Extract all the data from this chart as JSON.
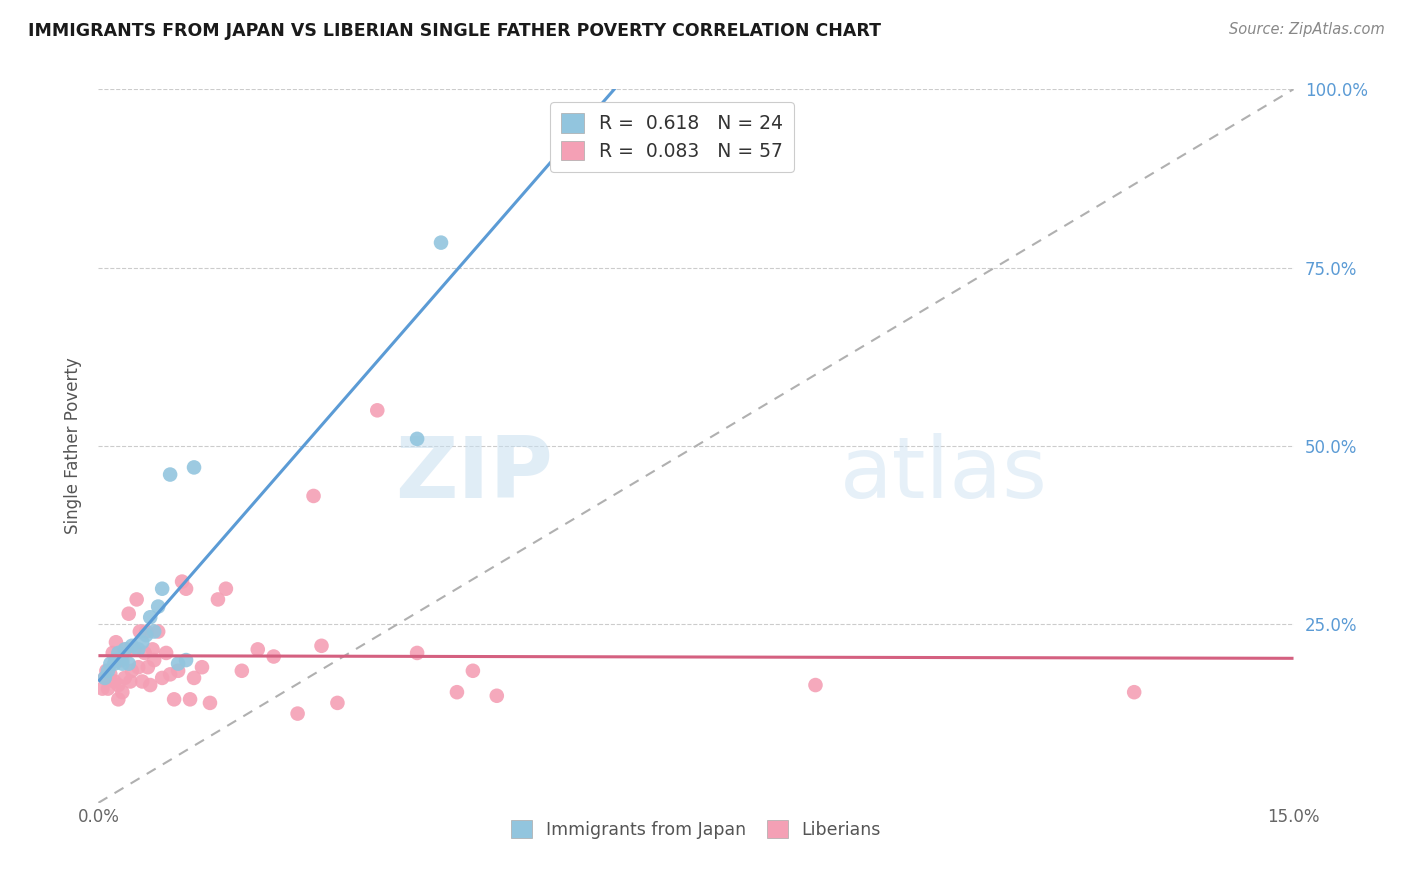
{
  "title": "IMMIGRANTS FROM JAPAN VS LIBERIAN SINGLE FATHER POVERTY CORRELATION CHART",
  "source": "Source: ZipAtlas.com",
  "ylabel": "Single Father Poverty",
  "legend_label1": "Immigrants from Japan",
  "legend_label2": "Liberians",
  "R1": 0.618,
  "N1": 24,
  "R2": 0.083,
  "N2": 57,
  "xlim": [
    0.0,
    0.15
  ],
  "ylim": [
    0.0,
    1.0
  ],
  "color_blue": "#92c5de",
  "color_pink": "#f4a0b5",
  "color_line_blue": "#5b9bd5",
  "color_line_pink": "#d46080",
  "color_diag": "#b0b0b0",
  "watermark_zip": "ZIP",
  "watermark_atlas": "atlas",
  "japan_x": [
    0.0008,
    0.0012,
    0.0015,
    0.002,
    0.0022,
    0.0025,
    0.003,
    0.0033,
    0.0038,
    0.0042,
    0.005,
    0.0055,
    0.006,
    0.0065,
    0.007,
    0.0075,
    0.008,
    0.009,
    0.01,
    0.011,
    0.012,
    0.04,
    0.043,
    0.058
  ],
  "japan_y": [
    0.175,
    0.185,
    0.195,
    0.195,
    0.2,
    0.21,
    0.195,
    0.215,
    0.195,
    0.22,
    0.215,
    0.225,
    0.235,
    0.26,
    0.24,
    0.275,
    0.3,
    0.46,
    0.195,
    0.2,
    0.47,
    0.51,
    0.785,
    0.97
  ],
  "liberia_x": [
    0.0005,
    0.0008,
    0.001,
    0.0012,
    0.0015,
    0.0018,
    0.002,
    0.0022,
    0.0025,
    0.0025,
    0.0028,
    0.003,
    0.003,
    0.0033,
    0.0035,
    0.0038,
    0.004,
    0.0042,
    0.0045,
    0.0048,
    0.005,
    0.0052,
    0.0055,
    0.0058,
    0.006,
    0.0062,
    0.0065,
    0.0068,
    0.007,
    0.0075,
    0.008,
    0.0085,
    0.009,
    0.0095,
    0.01,
    0.0105,
    0.011,
    0.0115,
    0.012,
    0.013,
    0.014,
    0.015,
    0.016,
    0.018,
    0.02,
    0.022,
    0.025,
    0.027,
    0.028,
    0.03,
    0.035,
    0.04,
    0.045,
    0.047,
    0.05,
    0.09,
    0.13
  ],
  "liberia_y": [
    0.16,
    0.175,
    0.185,
    0.16,
    0.18,
    0.21,
    0.17,
    0.225,
    0.145,
    0.165,
    0.2,
    0.155,
    0.2,
    0.175,
    0.215,
    0.265,
    0.17,
    0.185,
    0.215,
    0.285,
    0.19,
    0.24,
    0.17,
    0.21,
    0.24,
    0.19,
    0.165,
    0.215,
    0.2,
    0.24,
    0.175,
    0.21,
    0.18,
    0.145,
    0.185,
    0.31,
    0.3,
    0.145,
    0.175,
    0.19,
    0.14,
    0.285,
    0.3,
    0.185,
    0.215,
    0.205,
    0.125,
    0.43,
    0.22,
    0.14,
    0.55,
    0.21,
    0.155,
    0.185,
    0.15,
    0.165,
    0.155
  ],
  "ytick_positions": [
    0.25,
    0.5,
    0.75,
    1.0
  ],
  "ytick_labels": [
    "25.0%",
    "50.0%",
    "75.0%",
    "100.0%"
  ]
}
